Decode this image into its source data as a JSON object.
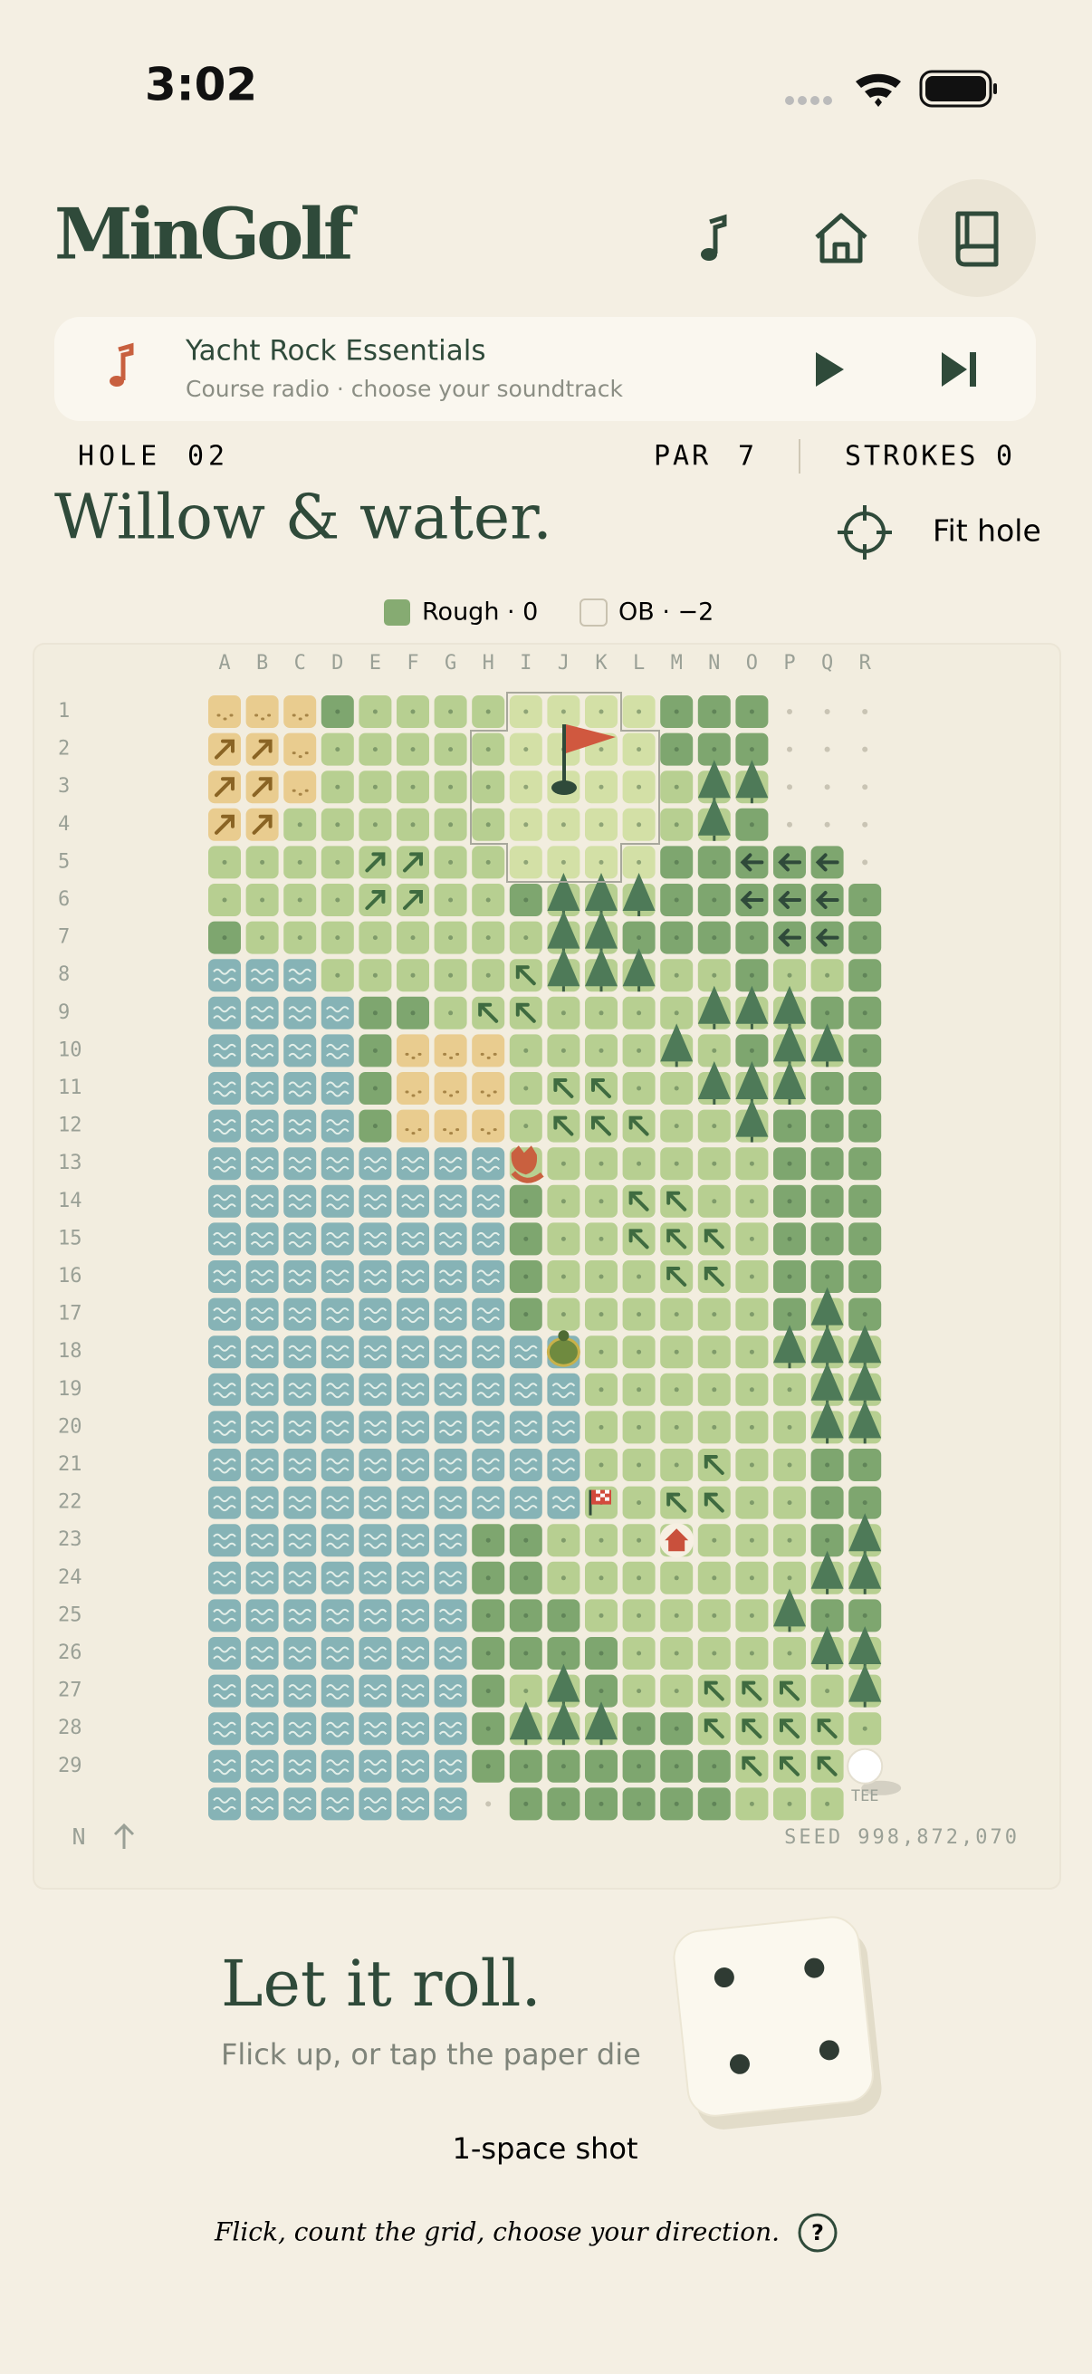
{
  "status_bar": {
    "time": "3:02"
  },
  "header": {
    "title": "MinGolf"
  },
  "radio": {
    "title": "Yacht Rock Essentials",
    "subtitle": "Course radio · choose your soundtrack"
  },
  "hole": {
    "label": "HOLE",
    "number": "02",
    "par_label": "PAR",
    "par": 7,
    "strokes_label": "STROKES",
    "strokes": 0
  },
  "heading": "Willow & water.",
  "fit_label": "Fit hole",
  "legend": [
    {
      "label": "Rough · 0"
    },
    {
      "label": "OB · −2"
    }
  ],
  "board": {
    "columns": [
      "A",
      "B",
      "C",
      "D",
      "E",
      "F",
      "G",
      "H",
      "I",
      "J",
      "K",
      "L",
      "M",
      "N",
      "O",
      "P",
      "Q",
      "R"
    ],
    "rows": [
      1,
      2,
      3,
      4,
      5,
      6,
      7,
      8,
      9,
      10,
      11,
      12,
      13,
      14,
      15,
      16,
      17,
      18,
      19,
      20,
      21,
      22,
      23,
      24,
      25,
      26,
      27,
      28,
      29
    ],
    "north": "N",
    "seed": "SEED 998,872,070",
    "tee": "TEE"
  },
  "roll": {
    "title": "Let it roll.",
    "subtitle": "Flick up, or tap the paper die",
    "shot": "1-space shot"
  },
  "footer": {
    "hint": "Flick, count the grid, choose your direction.",
    "help": "?"
  }
}
